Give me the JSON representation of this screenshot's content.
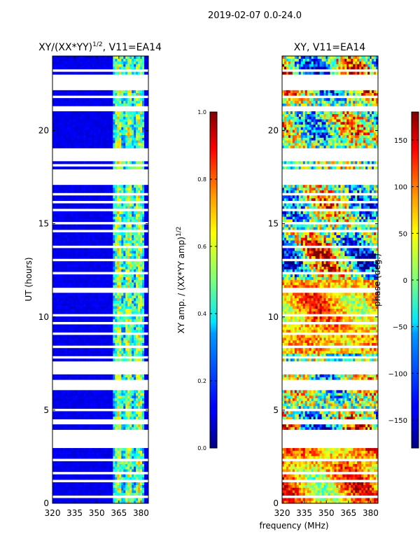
{
  "figure": {
    "suptitle": "2019-02-07 0.0-24.0"
  },
  "chart_data": [
    {
      "type": "heatmap",
      "title_main": "XY/(XX*YY)",
      "title_exp": "1/2",
      "title_suffix": ", V11=EA14",
      "xlabel": "",
      "ylabel": "UT (hours)",
      "xlim": [
        320,
        385
      ],
      "ylim": [
        0,
        24
      ],
      "xticks": [
        "320",
        "335",
        "350",
        "365",
        "380"
      ],
      "xtick_values": [
        320,
        335,
        350,
        365,
        380
      ],
      "yticks": [
        "0",
        "5",
        "10",
        "15",
        "20"
      ],
      "ytick_values": [
        0,
        5,
        10,
        15,
        20
      ],
      "colormap": "jet",
      "colorbar": {
        "label_main": "XY amp. / (XX*YY amp)",
        "label_exp": "1/2",
        "range": [
          0.0,
          1.0
        ],
        "ticks": [
          "0.0",
          "0.2",
          "0.4",
          "0.6",
          "0.8",
          "1.0"
        ],
        "tick_values": [
          0.0,
          0.2,
          0.4,
          0.6,
          0.8,
          1.0
        ]
      },
      "bright_band_mhz": [
        361,
        382
      ],
      "bright_band_level": 0.45,
      "background_level": 0.08,
      "data_gap_hours": [
        [
          0.3,
          0.45
        ],
        [
          1.1,
          1.25
        ],
        [
          1.6,
          1.75
        ],
        [
          2.25,
          2.4
        ],
        [
          2.9,
          4.0
        ],
        [
          4.3,
          4.45
        ],
        [
          5.0,
          5.1
        ],
        [
          6.1,
          6.6
        ],
        [
          6.95,
          7.6
        ],
        [
          7.8,
          7.95
        ],
        [
          8.35,
          8.5
        ],
        [
          9.0,
          9.2
        ],
        [
          9.55,
          9.7
        ],
        [
          10.05,
          10.15
        ],
        [
          11.3,
          11.6
        ],
        [
          12.25,
          12.4
        ],
        [
          13.05,
          13.2
        ],
        [
          13.7,
          13.8
        ],
        [
          14.2,
          14.3
        ],
        [
          14.6,
          14.75
        ],
        [
          15.0,
          15.1
        ],
        [
          15.65,
          15.8
        ],
        [
          16.1,
          16.25
        ],
        [
          16.5,
          16.65
        ],
        [
          17.05,
          17.95
        ],
        [
          18.1,
          18.25
        ],
        [
          18.35,
          19.0
        ],
        [
          21.05,
          21.25
        ],
        [
          21.7,
          21.95
        ],
        [
          22.1,
          23.0
        ],
        [
          23.2,
          23.35
        ]
      ]
    },
    {
      "type": "heatmap",
      "title": "XY, V11=EA14",
      "xlabel": "frequency (MHz)",
      "ylabel": "",
      "xlim": [
        320,
        385
      ],
      "ylim": [
        0,
        24
      ],
      "xticks": [
        "320",
        "335",
        "350",
        "365",
        "380"
      ],
      "xtick_values": [
        320,
        335,
        350,
        365,
        380
      ],
      "yticks": [
        "0",
        "5",
        "10",
        "15",
        "20"
      ],
      "ytick_values": [
        0,
        5,
        10,
        15,
        20
      ],
      "colormap": "jet",
      "colorbar": {
        "label": "phase (deg.)",
        "range": [
          -180,
          180
        ],
        "ticks": [
          "−150",
          "−100",
          "−50",
          "0",
          "50",
          "100",
          "150"
        ],
        "tick_values": [
          -150,
          -100,
          -50,
          0,
          50,
          100,
          150
        ]
      },
      "data_gap_hours": [
        [
          0.3,
          0.45
        ],
        [
          1.1,
          1.25
        ],
        [
          1.6,
          1.75
        ],
        [
          2.25,
          2.4
        ],
        [
          2.9,
          4.0
        ],
        [
          4.3,
          4.45
        ],
        [
          5.0,
          5.1
        ],
        [
          6.1,
          6.6
        ],
        [
          6.95,
          7.6
        ],
        [
          7.8,
          7.95
        ],
        [
          8.35,
          8.5
        ],
        [
          9.0,
          9.2
        ],
        [
          9.55,
          9.7
        ],
        [
          10.05,
          10.15
        ],
        [
          11.3,
          11.6
        ],
        [
          12.25,
          12.4
        ],
        [
          13.05,
          13.2
        ],
        [
          13.7,
          13.8
        ],
        [
          14.2,
          14.3
        ],
        [
          14.6,
          14.75
        ],
        [
          15.0,
          15.1
        ],
        [
          15.65,
          15.8
        ],
        [
          16.1,
          16.25
        ],
        [
          16.5,
          16.65
        ],
        [
          17.05,
          17.95
        ],
        [
          18.1,
          18.25
        ],
        [
          18.35,
          19.0
        ],
        [
          21.05,
          21.25
        ],
        [
          21.7,
          21.95
        ],
        [
          22.1,
          23.0
        ],
        [
          23.2,
          23.35
        ]
      ]
    }
  ]
}
